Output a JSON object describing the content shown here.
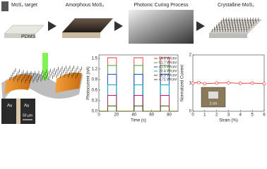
{
  "process": {
    "target": "MoS₂ target",
    "substrate": "PDMS",
    "steps": [
      "Amorphous MoS₂",
      "Photonic Curing Process",
      "Crystalline MoS₂"
    ]
  },
  "device": {
    "electrodes": [
      "Au",
      "Au"
    ],
    "scale_bar": "50 μm"
  },
  "chart_data": [
    {
      "type": "line",
      "x_label": "Time (s)",
      "y_label": "Photocurrent (nA)",
      "xlim": [
        0,
        90
      ],
      "ylim": [
        0,
        1.6
      ],
      "xticks": [
        0,
        20,
        40,
        60,
        80
      ],
      "yticks": [
        {
          "value": 0,
          "label": "0.0"
        },
        0.3,
        0.6,
        0.9,
        1.2,
        1.5
      ],
      "legend": "upper right",
      "series": [
        {
          "name": "59.6 W/cm²",
          "color": "#e53935",
          "x": [
            0,
            10,
            10,
            20,
            20,
            40,
            40,
            50,
            50,
            70,
            70,
            80,
            80,
            90
          ],
          "values": [
            0,
            0,
            1.52,
            1.52,
            0,
            0,
            1.52,
            1.52,
            0,
            0,
            1.52,
            1.52,
            0,
            0
          ]
        },
        {
          "name": "51.7 W/cm²",
          "color": "#43a047",
          "x": [
            0,
            10,
            10,
            20,
            20,
            40,
            40,
            50,
            50,
            70,
            70,
            80,
            80,
            90
          ],
          "values": [
            0,
            0,
            1.3,
            1.3,
            0,
            0,
            1.3,
            1.3,
            0,
            0,
            1.3,
            1.3,
            0,
            0
          ]
        },
        {
          "name": "41.5 W/cm²",
          "color": "#1e4fd8",
          "x": [
            0,
            10,
            10,
            20,
            20,
            40,
            40,
            50,
            50,
            70,
            70,
            80,
            80,
            90
          ],
          "values": [
            0,
            0,
            1.05,
            1.05,
            0,
            0,
            1.05,
            1.05,
            0,
            0,
            1.05,
            1.05,
            0,
            0
          ]
        },
        {
          "name": "30.4 W/cm²",
          "color": "#00acc1",
          "x": [
            0,
            10,
            10,
            20,
            20,
            40,
            40,
            50,
            50,
            70,
            70,
            80,
            80,
            90
          ],
          "values": [
            0,
            0,
            0.75,
            0.75,
            0,
            0,
            0.75,
            0.75,
            0,
            0,
            0.75,
            0.75,
            0,
            0
          ]
        },
        {
          "name": "18.3 W/cm²",
          "color": "#c2185b",
          "x": [
            0,
            10,
            10,
            20,
            20,
            40,
            40,
            50,
            50,
            70,
            70,
            80,
            80,
            90
          ],
          "values": [
            0,
            0,
            0.45,
            0.45,
            0,
            0,
            0.45,
            0.45,
            0,
            0,
            0.45,
            0.45,
            0,
            0
          ]
        },
        {
          "name": "4.71 W/cm²",
          "color": "#555500",
          "x": [
            0,
            10,
            10,
            20,
            20,
            40,
            40,
            50,
            50,
            70,
            70,
            80,
            80,
            90
          ],
          "values": [
            0,
            0,
            0.15,
            0.15,
            0,
            0,
            0.15,
            0.15,
            0,
            0,
            0.15,
            0.15,
            0,
            0
          ]
        }
      ]
    },
    {
      "type": "line",
      "markers": true,
      "x_label": "Strain (%)",
      "y_label": "Normalized Current",
      "xlim": [
        0,
        6
      ],
      "ylim": [
        0,
        2
      ],
      "xticks": [
        0,
        1,
        2,
        3,
        4,
        5,
        6
      ],
      "yticks": [
        0,
        1,
        2
      ],
      "inset_label": "2 cm",
      "series": [
        {
          "color": "#e53935",
          "x": [
            0,
            0.5,
            1,
            2,
            3,
            4,
            5,
            6
          ],
          "values": [
            1.0,
            1.02,
            0.98,
            1.0,
            1.01,
            0.99,
            1.0,
            0.98
          ]
        }
      ]
    }
  ]
}
